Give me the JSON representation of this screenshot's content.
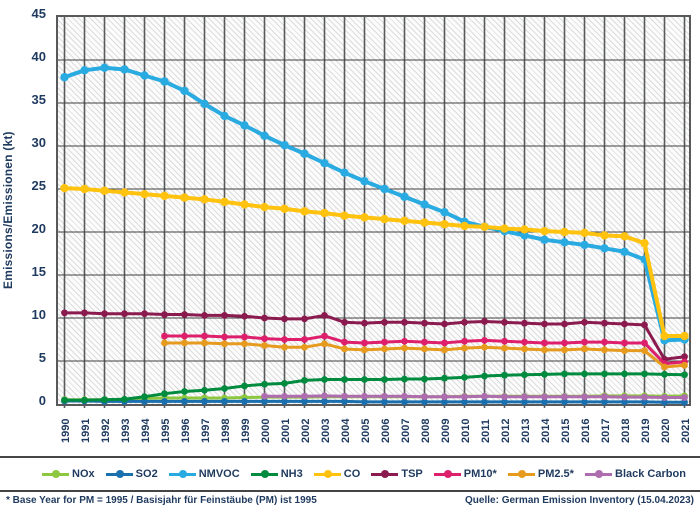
{
  "figure": {
    "y_axis_label": "Emissions/Emissionen (kt)",
    "footnote": "* Base Year for PM = 1995 / Basisjahr für Feinstäube (PM) ist 1995",
    "source": "Quelle: German Emission Inventory (15.04.2023)"
  },
  "chart_data": {
    "type": "line",
    "title": "",
    "xlabel": "",
    "ylabel": "Emissions/Emissionen (kt)",
    "ylim": [
      0,
      45
    ],
    "ytick_step": 5,
    "grid": true,
    "plot_background": "hatched",
    "legend_position": "bottom",
    "x": [
      1990,
      1991,
      1992,
      1993,
      1994,
      1995,
      1996,
      1997,
      1998,
      1999,
      2000,
      2001,
      2002,
      2003,
      2004,
      2005,
      2006,
      2007,
      2008,
      2009,
      2010,
      2011,
      2012,
      2013,
      2014,
      2015,
      2016,
      2017,
      2018,
      2019,
      2020,
      2021
    ],
    "series": [
      {
        "name": "NOx",
        "color": "#8DC63F",
        "values": [
          0.5,
          0.5,
          0.5,
          0.55,
          0.65,
          0.7,
          0.7,
          0.7,
          0.7,
          0.75,
          0.8,
          0.8,
          0.8,
          0.85,
          0.85,
          0.85,
          0.85,
          0.85,
          0.85,
          0.85,
          0.9,
          0.9,
          0.9,
          0.9,
          0.9,
          0.9,
          0.9,
          0.95,
          0.95,
          0.95,
          0.9,
          0.95
        ]
      },
      {
        "name": "SO2",
        "color": "#1A6FAE",
        "values": [
          0.35,
          0.35,
          0.3,
          0.3,
          0.3,
          0.3,
          0.3,
          0.3,
          0.3,
          0.3,
          0.3,
          0.3,
          0.3,
          0.3,
          0.3,
          0.25,
          0.25,
          0.25,
          0.25,
          0.25,
          0.25,
          0.25,
          0.25,
          0.25,
          0.25,
          0.25,
          0.25,
          0.25,
          0.25,
          0.25,
          0.2,
          0.2
        ]
      },
      {
        "name": "NMVOC",
        "color": "#29ABE2",
        "values": [
          38.0,
          38.8,
          39.1,
          38.9,
          38.2,
          37.5,
          36.4,
          34.9,
          33.5,
          32.4,
          31.2,
          30.1,
          29.1,
          28.0,
          26.9,
          25.9,
          25.0,
          24.1,
          23.2,
          22.3,
          21.2,
          20.6,
          20.1,
          19.6,
          19.1,
          18.8,
          18.5,
          18.1,
          17.7,
          16.8,
          7.4,
          7.5
        ]
      },
      {
        "name": "NH3",
        "color": "#008B3F",
        "values": [
          0.45,
          0.45,
          0.5,
          0.55,
          0.85,
          1.2,
          1.45,
          1.6,
          1.8,
          2.1,
          2.3,
          2.4,
          2.75,
          2.85,
          2.85,
          2.85,
          2.85,
          2.9,
          2.9,
          3.0,
          3.1,
          3.25,
          3.35,
          3.4,
          3.45,
          3.5,
          3.5,
          3.5,
          3.5,
          3.5,
          3.45,
          3.4
        ]
      },
      {
        "name": "CO",
        "color": "#FFC20E",
        "values": [
          25.1,
          25.0,
          24.8,
          24.6,
          24.4,
          24.2,
          24.0,
          23.8,
          23.5,
          23.2,
          22.9,
          22.7,
          22.4,
          22.2,
          21.9,
          21.7,
          21.5,
          21.3,
          21.1,
          20.9,
          20.7,
          20.6,
          20.4,
          20.3,
          20.1,
          20.0,
          19.9,
          19.6,
          19.5,
          18.7,
          7.9,
          7.9
        ]
      },
      {
        "name": "TSP",
        "color": "#8B1A4F",
        "values": [
          10.6,
          10.6,
          10.5,
          10.5,
          10.5,
          10.4,
          10.4,
          10.3,
          10.3,
          10.2,
          10.0,
          9.9,
          9.9,
          10.3,
          9.5,
          9.4,
          9.5,
          9.5,
          9.4,
          9.3,
          9.5,
          9.6,
          9.5,
          9.4,
          9.3,
          9.3,
          9.5,
          9.4,
          9.3,
          9.2,
          5.2,
          5.5
        ]
      },
      {
        "name": "PM10*",
        "color": "#DE1F6B",
        "values": [
          null,
          null,
          null,
          null,
          null,
          7.9,
          7.9,
          7.9,
          7.8,
          7.8,
          7.6,
          7.5,
          7.5,
          7.9,
          7.2,
          7.1,
          7.2,
          7.3,
          7.2,
          7.1,
          7.3,
          7.4,
          7.3,
          7.2,
          7.1,
          7.1,
          7.2,
          7.2,
          7.1,
          7.1,
          4.7,
          4.9
        ]
      },
      {
        "name": "PM2.5*",
        "color": "#E69B1F",
        "values": [
          null,
          null,
          null,
          null,
          null,
          7.1,
          7.1,
          7.1,
          7.0,
          7.0,
          6.8,
          6.6,
          6.6,
          7.0,
          6.4,
          6.3,
          6.4,
          6.5,
          6.4,
          6.3,
          6.5,
          6.6,
          6.5,
          6.4,
          6.3,
          6.3,
          6.4,
          6.3,
          6.2,
          6.2,
          4.3,
          4.5
        ]
      },
      {
        "name": "Black Carbon",
        "color": "#AE6DAE",
        "values": [
          null,
          null,
          null,
          null,
          null,
          null,
          null,
          null,
          null,
          null,
          0.9,
          0.9,
          0.9,
          0.95,
          0.9,
          0.9,
          0.9,
          0.9,
          0.85,
          0.85,
          0.85,
          0.9,
          0.85,
          0.85,
          0.85,
          0.85,
          0.85,
          0.85,
          0.8,
          0.8,
          0.75,
          0.75
        ]
      }
    ]
  }
}
